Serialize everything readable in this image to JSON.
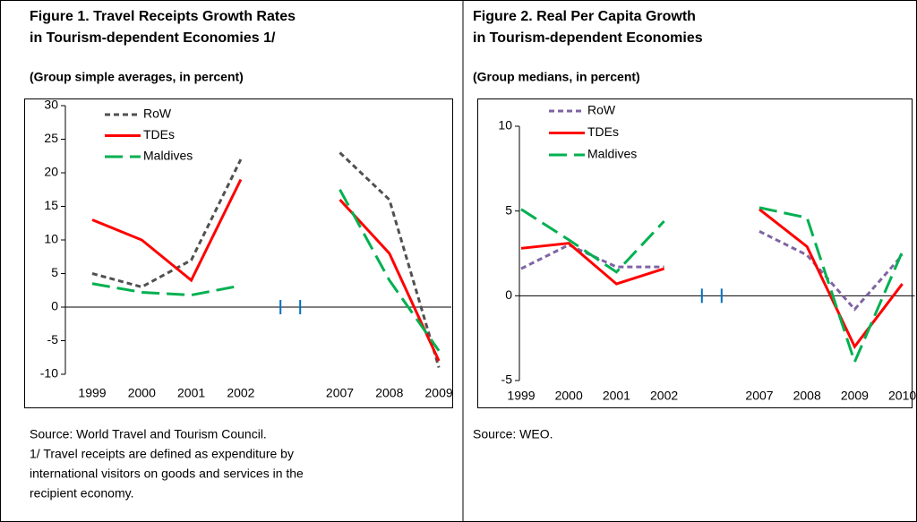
{
  "chart_data": [
    {
      "type": "line",
      "title": [
        "Figure 1. Travel Receipts Growth Rates",
        "in Tourism-dependent Economies 1/"
      ],
      "subtitle": "(Group simple averages, in percent)",
      "categories": [
        "1999",
        "2000",
        "2001",
        "2002",
        null,
        "2007",
        "2008",
        "2009"
      ],
      "series": [
        {
          "name": "RoW",
          "color": "#505050",
          "line_style": "dashed",
          "values": [
            5,
            3,
            7,
            22,
            null,
            23,
            16,
            -9
          ]
        },
        {
          "name": "TDEs",
          "color": "#ff0000",
          "line_style": "solid",
          "values": [
            13,
            10,
            4,
            19,
            null,
            16,
            8,
            -8
          ]
        },
        {
          "name": "Maldives",
          "color": "#00b050",
          "line_style": "long-dash",
          "values": [
            3.5,
            2.2,
            1.8,
            3.2,
            null,
            17.5,
            4,
            -6.5
          ]
        }
      ],
      "ylim": [
        -10,
        30
      ],
      "yticks": [
        -10,
        -5,
        0,
        5,
        10,
        15,
        20,
        25,
        30
      ],
      "grid": false,
      "legend": "top-left",
      "notes": [
        "Source: World Travel and Tourism Council.",
        "1/ Travel receipts are defined as expenditure by",
        "international visitors on goods and services in the",
        "recipient economy."
      ]
    },
    {
      "type": "line",
      "title": [
        "Figure 2. Real Per Capita Growth",
        "in Tourism-dependent Economies"
      ],
      "subtitle": "(Group medians, in percent)",
      "categories": [
        "1999",
        "2000",
        "2001",
        "2002",
        null,
        "2007",
        "2008",
        "2009",
        "2010"
      ],
      "series": [
        {
          "name": "RoW",
          "color": "#8064a2",
          "line_style": "dashed",
          "values": [
            1.6,
            3,
            1.7,
            1.7,
            null,
            3.8,
            2.4,
            -0.8,
            2.4
          ]
        },
        {
          "name": "TDEs",
          "color": "#ff0000",
          "line_style": "solid",
          "values": [
            2.8,
            3.1,
            0.7,
            1.6,
            null,
            5.1,
            2.9,
            -3,
            0.7
          ]
        },
        {
          "name": "Maldives",
          "color": "#00b050",
          "line_style": "long-dash",
          "values": [
            5.1,
            3.3,
            1.4,
            4.4,
            null,
            5.2,
            4.6,
            -3.9,
            2.6
          ]
        }
      ],
      "ylim": [
        -5,
        10
      ],
      "yticks": [
        -5,
        0,
        5,
        10
      ],
      "grid": false,
      "legend": "top-left",
      "notes": [
        "Source: WEO."
      ]
    }
  ]
}
